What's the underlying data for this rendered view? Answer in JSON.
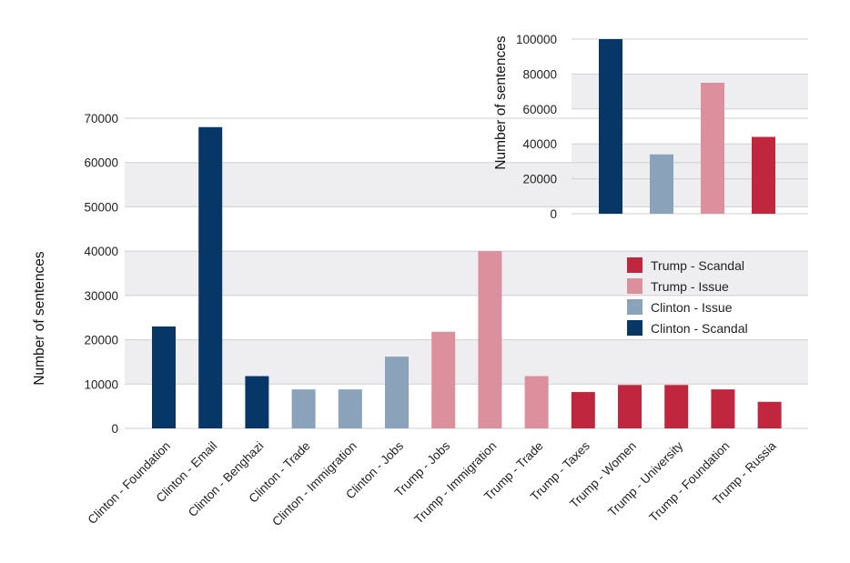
{
  "chart_data": [
    {
      "id": "main",
      "type": "bar",
      "title": "",
      "xlabel": "",
      "ylabel": "Number of sentences",
      "ylim": [
        0,
        70000
      ],
      "yticks": [
        0,
        10000,
        20000,
        30000,
        40000,
        50000,
        60000,
        70000
      ],
      "grid": "alternating horizontal bands",
      "categories": [
        "Clinton - Foundation",
        "Clinton - Email",
        "Clinton - Benghazi",
        "Clinton - Trade",
        "Clinton - Immigration",
        "Clinton - Jobs",
        "Trump - Jobs",
        "Trump - Immigration",
        "Trump - Trade",
        "Trump - Taxes",
        "Trump - Women",
        "Trump - University",
        "Trump - Foundation",
        "Trump - Russia"
      ],
      "values": [
        23000,
        68000,
        11800,
        8800,
        8800,
        16200,
        21800,
        40000,
        11800,
        8200,
        9800,
        9800,
        8800,
        6000
      ],
      "groups": [
        "Clinton - Scandal",
        "Clinton - Scandal",
        "Clinton - Scandal",
        "Clinton - Issue",
        "Clinton - Issue",
        "Clinton - Issue",
        "Trump - Issue",
        "Trump - Issue",
        "Trump - Issue",
        "Trump - Scandal",
        "Trump - Scandal",
        "Trump - Scandal",
        "Trump - Scandal",
        "Trump - Scandal"
      ]
    },
    {
      "id": "inset",
      "type": "bar",
      "title": "",
      "xlabel": "",
      "ylabel": "Number of sentences",
      "ylim": [
        0,
        100000
      ],
      "yticks": [
        0,
        20000,
        40000,
        60000,
        80000,
        100000
      ],
      "grid": "alternating horizontal bands",
      "categories": [
        "Clinton - Scandal",
        "Clinton - Issue",
        "Trump - Issue",
        "Trump - Scandal"
      ],
      "values": [
        100000,
        34000,
        75000,
        44000
      ],
      "groups": [
        "Clinton - Scandal",
        "Clinton - Issue",
        "Trump - Issue",
        "Trump - Scandal"
      ]
    }
  ],
  "legend": {
    "position": "right, below inset",
    "items": [
      {
        "label": "Trump - Scandal",
        "color": "#c0273f"
      },
      {
        "label": "Trump - Issue",
        "color": "#dc8f9c"
      },
      {
        "label": "Clinton - Issue",
        "color": "#8aa3bb"
      },
      {
        "label": "Clinton - Scandal",
        "color": "#073767"
      }
    ]
  },
  "colors": {
    "Clinton - Scandal": "#073767",
    "Clinton - Issue": "#8aa3bb",
    "Trump - Issue": "#dc8f9c",
    "Trump - Scandal": "#c0273f",
    "band": "#eeeef0",
    "gridline": "#cfcfd3"
  }
}
